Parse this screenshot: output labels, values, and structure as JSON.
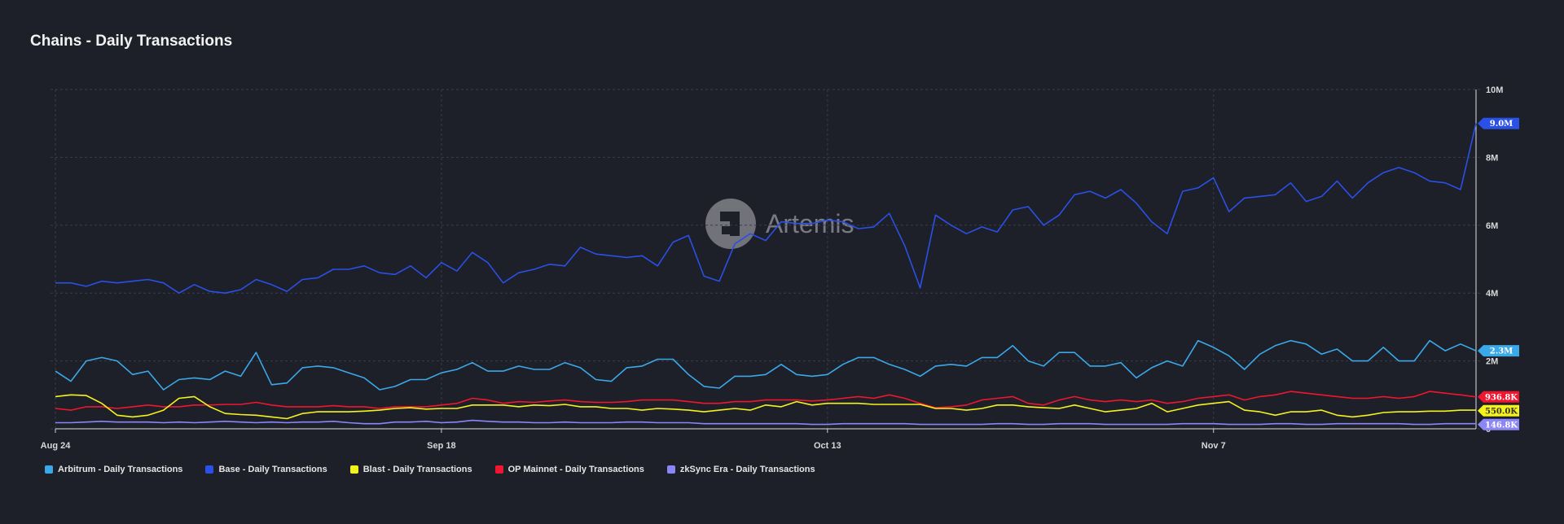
{
  "title": "Chains - Daily Transactions",
  "watermark": "Artemis",
  "colors": {
    "background": "#1d1f29",
    "grid": "#3a3d4a",
    "axis_text": "#d9d9d9"
  },
  "chart_data": {
    "type": "line",
    "title": "Chains - Daily Transactions",
    "xlabel": "",
    "ylabel": "",
    "x_ticks": [
      "Aug 24",
      "Sep 18",
      "Oct 13",
      "Nov 7"
    ],
    "x_tick_indices": [
      0,
      25,
      50,
      75
    ],
    "y_ticks": [
      "0",
      "2M",
      "4M",
      "6M",
      "8M",
      "10M"
    ],
    "ylim": [
      0,
      10000000
    ],
    "grid": true,
    "legend_position": "bottom-left",
    "series": [
      {
        "name": "Arbitrum - Daily Transactions",
        "color": "#3ba8e8",
        "end_label": "2.3M",
        "values": [
          1.7,
          1.4,
          2.0,
          2.1,
          2.0,
          1.6,
          1.7,
          1.15,
          1.45,
          1.5,
          1.45,
          1.7,
          1.55,
          2.25,
          1.3,
          1.35,
          1.8,
          1.85,
          1.8,
          1.65,
          1.5,
          1.15,
          1.25,
          1.45,
          1.45,
          1.65,
          1.75,
          1.95,
          1.7,
          1.7,
          1.85,
          1.75,
          1.75,
          1.95,
          1.8,
          1.45,
          1.4,
          1.8,
          1.85,
          2.05,
          2.05,
          1.6,
          1.25,
          1.2,
          1.55,
          1.55,
          1.6,
          1.9,
          1.6,
          1.55,
          1.6,
          1.9,
          2.1,
          2.1,
          1.9,
          1.75,
          1.55,
          1.85,
          1.9,
          1.85,
          2.1,
          2.1,
          2.45,
          2.0,
          1.85,
          2.25,
          2.25,
          1.85,
          1.85,
          1.95,
          1.5,
          1.8,
          2.0,
          1.85,
          2.6,
          2.4,
          2.15,
          1.75,
          2.2,
          2.45,
          2.6,
          2.5,
          2.2,
          2.35,
          2.0,
          2.0,
          2.4,
          2.0,
          2.0,
          2.6,
          2.3,
          2.5,
          2.3
        ]
      },
      {
        "name": "Base - Daily Transactions",
        "color": "#2a50e6",
        "end_label": "9.0M",
        "values": [
          4.3,
          4.3,
          4.2,
          4.35,
          4.3,
          4.35,
          4.4,
          4.3,
          4.0,
          4.25,
          4.05,
          4.0,
          4.1,
          4.4,
          4.25,
          4.05,
          4.4,
          4.45,
          4.7,
          4.7,
          4.8,
          4.6,
          4.55,
          4.8,
          4.45,
          4.9,
          4.65,
          5.2,
          4.9,
          4.3,
          4.6,
          4.7,
          4.85,
          4.8,
          5.35,
          5.15,
          5.1,
          5.05,
          5.1,
          4.8,
          5.5,
          5.7,
          4.5,
          4.35,
          5.45,
          5.75,
          5.55,
          6.1,
          6.05,
          6.05,
          6.15,
          6.1,
          5.9,
          5.95,
          6.35,
          5.4,
          4.15,
          6.3,
          6.0,
          5.75,
          5.95,
          5.8,
          6.45,
          6.55,
          6.0,
          6.3,
          6.9,
          7.0,
          6.8,
          7.05,
          6.65,
          6.1,
          5.75,
          7.0,
          7.1,
          7.4,
          6.4,
          6.8,
          6.85,
          6.9,
          7.25,
          6.7,
          6.85,
          7.3,
          6.8,
          7.25,
          7.55,
          7.7,
          7.55,
          7.3,
          7.25,
          7.05,
          9.0
        ]
      },
      {
        "name": "Blast - Daily Transactions",
        "color": "#f5f31e",
        "end_label": "550.0K",
        "values": [
          0.95,
          1.0,
          0.98,
          0.75,
          0.4,
          0.35,
          0.4,
          0.55,
          0.9,
          0.95,
          0.65,
          0.45,
          0.42,
          0.4,
          0.35,
          0.3,
          0.45,
          0.5,
          0.5,
          0.5,
          0.52,
          0.55,
          0.6,
          0.62,
          0.58,
          0.6,
          0.6,
          0.7,
          0.7,
          0.7,
          0.65,
          0.7,
          0.68,
          0.72,
          0.65,
          0.65,
          0.6,
          0.6,
          0.55,
          0.6,
          0.58,
          0.55,
          0.5,
          0.55,
          0.6,
          0.55,
          0.7,
          0.65,
          0.8,
          0.7,
          0.75,
          0.75,
          0.75,
          0.72,
          0.72,
          0.72,
          0.72,
          0.6,
          0.6,
          0.55,
          0.6,
          0.7,
          0.7,
          0.65,
          0.62,
          0.6,
          0.7,
          0.6,
          0.5,
          0.55,
          0.6,
          0.75,
          0.5,
          0.6,
          0.7,
          0.75,
          0.8,
          0.55,
          0.5,
          0.4,
          0.5,
          0.5,
          0.55,
          0.4,
          0.35,
          0.4,
          0.48,
          0.5,
          0.5,
          0.52,
          0.52,
          0.55,
          0.55
        ]
      },
      {
        "name": "OP Mainnet - Daily Transactions",
        "color": "#f0162f",
        "end_label": "936.8K",
        "values": [
          0.6,
          0.55,
          0.65,
          0.65,
          0.6,
          0.65,
          0.7,
          0.65,
          0.65,
          0.7,
          0.7,
          0.72,
          0.72,
          0.78,
          0.7,
          0.65,
          0.65,
          0.65,
          0.68,
          0.65,
          0.65,
          0.6,
          0.65,
          0.65,
          0.65,
          0.7,
          0.75,
          0.9,
          0.85,
          0.75,
          0.8,
          0.78,
          0.82,
          0.85,
          0.8,
          0.78,
          0.78,
          0.8,
          0.85,
          0.85,
          0.85,
          0.8,
          0.75,
          0.75,
          0.8,
          0.8,
          0.85,
          0.85,
          0.85,
          0.82,
          0.85,
          0.9,
          0.95,
          0.9,
          1.0,
          0.9,
          0.75,
          0.62,
          0.65,
          0.7,
          0.85,
          0.9,
          0.95,
          0.75,
          0.7,
          0.85,
          0.95,
          0.85,
          0.8,
          0.85,
          0.8,
          0.85,
          0.75,
          0.8,
          0.9,
          0.95,
          1.0,
          0.85,
          0.95,
          1.0,
          1.1,
          1.05,
          1.0,
          0.95,
          0.9,
          0.9,
          0.95,
          0.9,
          0.95,
          1.1,
          1.05,
          1.0,
          0.94
        ]
      },
      {
        "name": "zkSync Era - Daily Transactions",
        "color": "#8b86f5",
        "end_label": "146.8K",
        "values": [
          0.18,
          0.18,
          0.2,
          0.22,
          0.2,
          0.2,
          0.2,
          0.18,
          0.2,
          0.18,
          0.2,
          0.22,
          0.2,
          0.18,
          0.2,
          0.18,
          0.2,
          0.2,
          0.22,
          0.18,
          0.15,
          0.15,
          0.2,
          0.2,
          0.22,
          0.18,
          0.2,
          0.25,
          0.22,
          0.2,
          0.2,
          0.18,
          0.18,
          0.2,
          0.18,
          0.18,
          0.18,
          0.2,
          0.2,
          0.18,
          0.18,
          0.18,
          0.15,
          0.15,
          0.15,
          0.15,
          0.15,
          0.15,
          0.15,
          0.13,
          0.13,
          0.15,
          0.15,
          0.15,
          0.15,
          0.15,
          0.13,
          0.13,
          0.13,
          0.13,
          0.13,
          0.15,
          0.15,
          0.13,
          0.13,
          0.15,
          0.15,
          0.15,
          0.13,
          0.13,
          0.13,
          0.13,
          0.13,
          0.15,
          0.15,
          0.15,
          0.13,
          0.13,
          0.13,
          0.15,
          0.15,
          0.13,
          0.13,
          0.15,
          0.15,
          0.15,
          0.15,
          0.15,
          0.13,
          0.13,
          0.15,
          0.15,
          0.15
        ]
      }
    ]
  }
}
